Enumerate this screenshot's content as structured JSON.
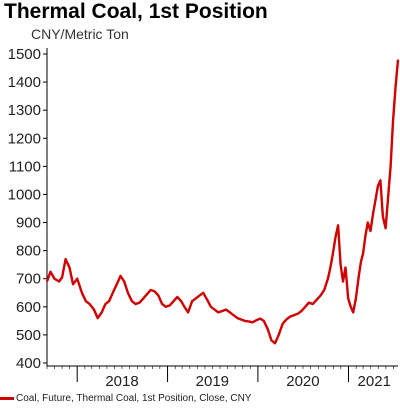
{
  "header": {
    "title": "Thermal Coal, 1st Position",
    "units": "CNY/Metric Ton"
  },
  "colors": {
    "series": "#d00000",
    "axis": "#000000"
  },
  "legend": {
    "label": "Coal, Future, Thermal Coal, 1st Position, Close, CNY",
    "placement": "bottom-left"
  },
  "chart_data": {
    "type": "line",
    "title": "Thermal Coal, 1st Position",
    "ylabel": "CNY/Metric Ton",
    "xlabel": "",
    "ylim": [
      400,
      1500
    ],
    "yticks": [
      400,
      500,
      600,
      700,
      800,
      900,
      1000,
      1100,
      1200,
      1300,
      1400,
      1500
    ],
    "xlim": [
      "2017-09-01",
      "2021-07-20"
    ],
    "xtick_labels": [
      {
        "label": "2018",
        "date": "2018-07-01"
      },
      {
        "label": "2019",
        "date": "2019-07-01"
      },
      {
        "label": "2020",
        "date": "2020-07-01"
      },
      {
        "label": "2021",
        "date": "2021-04-15"
      }
    ],
    "grid": false,
    "series": [
      {
        "name": "Coal, Future, Thermal Coal, 1st Position, Close, CNY",
        "x": [
          "2017-09-01",
          "2017-09-15",
          "2017-10-01",
          "2017-10-20",
          "2017-11-01",
          "2017-11-15",
          "2017-12-01",
          "2017-12-15",
          "2018-01-01",
          "2018-01-20",
          "2018-02-05",
          "2018-02-20",
          "2018-03-10",
          "2018-03-25",
          "2018-04-10",
          "2018-04-25",
          "2018-05-10",
          "2018-05-25",
          "2018-06-10",
          "2018-06-25",
          "2018-07-10",
          "2018-07-25",
          "2018-08-10",
          "2018-08-25",
          "2018-09-10",
          "2018-09-25",
          "2018-10-10",
          "2018-10-25",
          "2018-11-10",
          "2018-11-25",
          "2018-12-10",
          "2018-12-25",
          "2019-01-10",
          "2019-01-25",
          "2019-02-10",
          "2019-02-25",
          "2019-03-10",
          "2019-03-25",
          "2019-04-10",
          "2019-04-25",
          "2019-05-10",
          "2019-05-25",
          "2019-06-10",
          "2019-06-25",
          "2019-07-10",
          "2019-07-25",
          "2019-08-10",
          "2019-08-25",
          "2019-09-10",
          "2019-09-25",
          "2019-10-10",
          "2019-10-25",
          "2019-11-10",
          "2019-11-25",
          "2019-12-10",
          "2019-12-25",
          "2020-01-10",
          "2020-01-25",
          "2020-02-10",
          "2020-02-25",
          "2020-03-10",
          "2020-03-25",
          "2020-04-10",
          "2020-04-25",
          "2020-05-10",
          "2020-05-25",
          "2020-06-10",
          "2020-06-25",
          "2020-07-10",
          "2020-07-25",
          "2020-08-10",
          "2020-08-25",
          "2020-09-10",
          "2020-09-25",
          "2020-10-10",
          "2020-10-20",
          "2020-10-30",
          "2020-11-10",
          "2020-11-20",
          "2020-11-30",
          "2020-12-10",
          "2020-12-20",
          "2020-12-31",
          "2021-01-10",
          "2021-01-20",
          "2021-01-31",
          "2021-02-10",
          "2021-02-20",
          "2021-03-01",
          "2021-03-10",
          "2021-03-20",
          "2021-03-31",
          "2021-04-10",
          "2021-04-20",
          "2021-04-30",
          "2021-05-10",
          "2021-05-20",
          "2021-05-31",
          "2021-06-10",
          "2021-06-20",
          "2021-06-30",
          "2021-07-10",
          "2021-07-20"
        ],
        "values": [
          690,
          725,
          700,
          690,
          705,
          770,
          740,
          680,
          700,
          650,
          620,
          610,
          590,
          560,
          580,
          610,
          620,
          650,
          680,
          710,
          690,
          650,
          620,
          610,
          615,
          630,
          645,
          660,
          655,
          640,
          610,
          600,
          605,
          620,
          635,
          620,
          600,
          580,
          620,
          630,
          640,
          650,
          625,
          600,
          590,
          580,
          585,
          590,
          580,
          570,
          560,
          555,
          550,
          548,
          545,
          552,
          558,
          550,
          520,
          480,
          470,
          500,
          540,
          555,
          565,
          570,
          575,
          585,
          600,
          615,
          610,
          625,
          640,
          660,
          700,
          740,
          790,
          850,
          890,
          750,
          690,
          740,
          630,
          600,
          580,
          630,
          700,
          760,
          790,
          850,
          900,
          870,
          930,
          980,
          1030,
          1050,
          920,
          880,
          990,
          1100,
          1260,
          1380,
          1480
        ]
      }
    ]
  }
}
